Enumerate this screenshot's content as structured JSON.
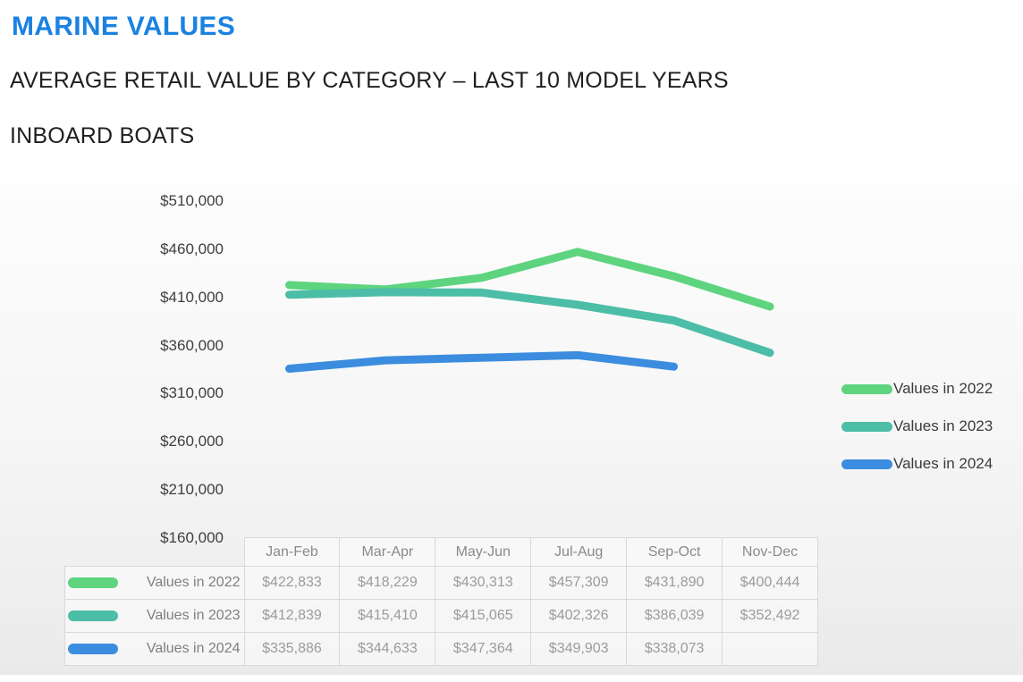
{
  "header": {
    "title": "MARINE VALUES",
    "subtitle": "AVERAGE RETAIL VALUE BY CATEGORY – LAST 10 MODEL YEARS",
    "category": "INBOARD BOATS"
  },
  "colors": {
    "accent_blue": "#1b82e2",
    "series_2022": "#5ed47f",
    "series_2023": "#4cbda6",
    "series_2024": "#3c8ddf"
  },
  "chart_data": {
    "type": "line",
    "title": "",
    "xlabel": "",
    "ylabel": "",
    "categories": [
      "Jan-Feb",
      "Mar-Apr",
      "May-Jun",
      "Jul-Aug",
      "Sep-Oct",
      "Nov-Dec"
    ],
    "series": [
      {
        "name": "Values in 2022",
        "color": "#5ed47f",
        "values": [
          422833,
          418229,
          430313,
          457309,
          431890,
          400444
        ]
      },
      {
        "name": "Values in 2023",
        "color": "#4cbda6",
        "values": [
          412839,
          415410,
          415065,
          402326,
          386039,
          352492
        ]
      },
      {
        "name": "Values in 2024",
        "color": "#3c8ddf",
        "values": [
          335886,
          344633,
          347364,
          349903,
          338073,
          null
        ]
      }
    ],
    "ylim": [
      160000,
      510000
    ],
    "ytick_step": 50000,
    "ytick_labels": [
      "$510,000",
      "$460,000",
      "$410,000",
      "$360,000",
      "$310,000",
      "$260,000",
      "$210,000",
      "$160,000"
    ],
    "grid": false,
    "legend_position": "right"
  },
  "table": {
    "corner_label": "",
    "columns": [
      "Jan-Feb",
      "Mar-Apr",
      "May-Jun",
      "Jul-Aug",
      "Sep-Oct",
      "Nov-Dec"
    ],
    "rows": [
      {
        "label": "Values in 2022",
        "color": "#5ed47f",
        "cells": [
          "$422,833",
          "$418,229",
          "$430,313",
          "$457,309",
          "$431,890",
          "$400,444"
        ]
      },
      {
        "label": "Values in 2023",
        "color": "#4cbda6",
        "cells": [
          "$412,839",
          "$415,410",
          "$415,065",
          "$402,326",
          "$386,039",
          "$352,492"
        ]
      },
      {
        "label": "Values in 2024",
        "color": "#3c8ddf",
        "cells": [
          "$335,886",
          "$344,633",
          "$347,364",
          "$349,903",
          "$338,073",
          ""
        ]
      }
    ]
  }
}
